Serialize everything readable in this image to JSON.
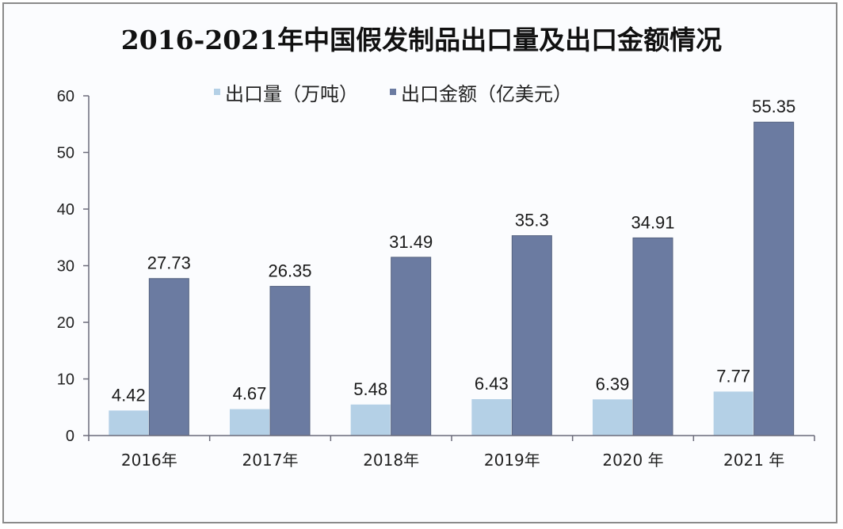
{
  "chart_data": {
    "type": "bar",
    "title": "2016-2021年中国假发制品出口量及出口金额情况",
    "xlabel": "",
    "ylabel": "",
    "ylim": [
      0,
      60
    ],
    "yticks": [
      0,
      10,
      20,
      30,
      40,
      50,
      60
    ],
    "grid": false,
    "legend_position": "top-center",
    "categories": [
      "2016年",
      "2017年",
      "2018年",
      "2019年",
      "2020 年",
      "2021 年"
    ],
    "series": [
      {
        "name": "出口量（万吨）",
        "color": "#b4d0e6",
        "values": [
          4.42,
          4.67,
          5.48,
          6.43,
          6.39,
          7.77
        ],
        "labels": [
          "4.42",
          "4.67",
          "5.48",
          "6.43",
          "6.39",
          "7.77"
        ]
      },
      {
        "name": "出口金额（亿美元）",
        "color": "#6b7ba1",
        "values": [
          27.73,
          26.35,
          31.49,
          35.3,
          34.91,
          55.35
        ],
        "labels": [
          "27.73",
          "26.35",
          "31.49",
          "35.3",
          "34.91",
          "55.35"
        ]
      }
    ]
  }
}
